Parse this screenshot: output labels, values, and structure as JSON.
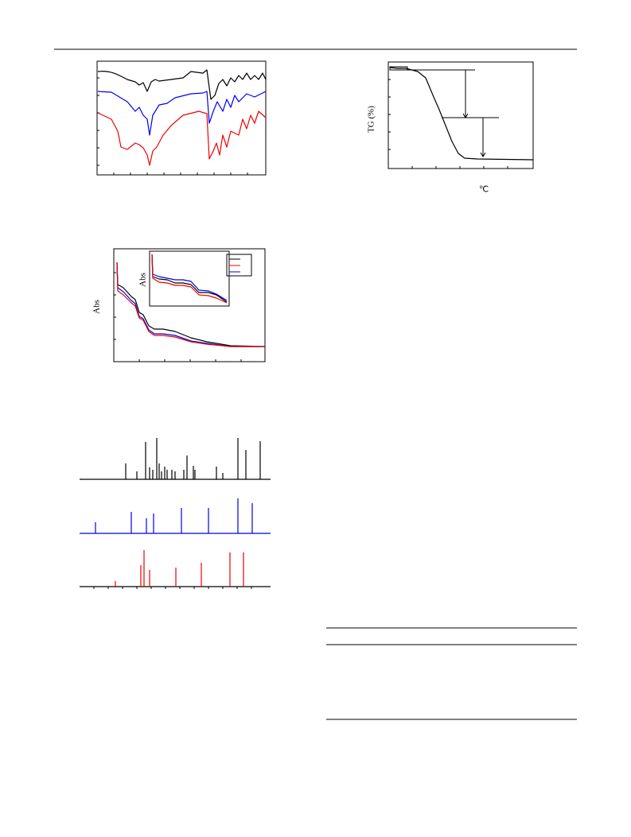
{
  "ir_figure": {},
  "tg_figure": {
    "y_label": "TG (%)",
    "x_label": "℃"
  },
  "uv_figure": {
    "y_label": "Abs",
    "inset_y_label": "Abs"
  },
  "xrd_figure": {},
  "table": {}
}
